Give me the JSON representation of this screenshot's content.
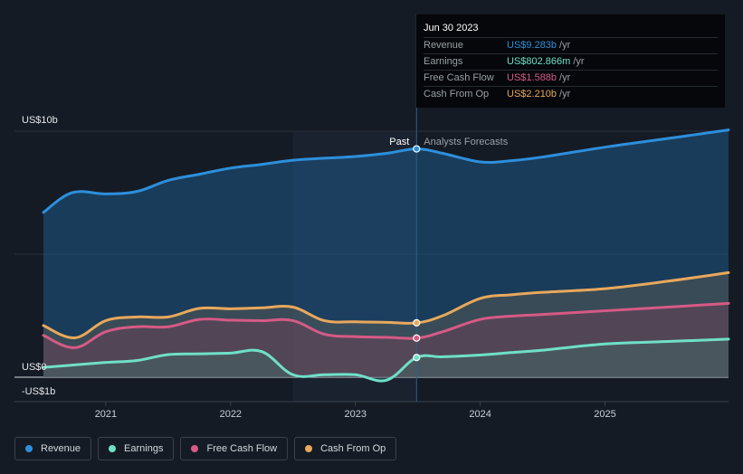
{
  "tooltip": {
    "date": "Jun 30 2023",
    "rows": [
      {
        "label": "Revenue",
        "value": "US$9.283b",
        "unit": "/yr",
        "color": "#2d8fdc"
      },
      {
        "label": "Earnings",
        "value": "US$802.866m",
        "unit": "/yr",
        "color": "#6fe0c8"
      },
      {
        "label": "Free Cash Flow",
        "value": "US$1.588b",
        "unit": "/yr",
        "color": "#d65a86"
      },
      {
        "label": "Cash From Op",
        "value": "US$2.210b",
        "unit": "/yr",
        "color": "#e8a85c"
      }
    ]
  },
  "legend": [
    {
      "label": "Revenue",
      "color": "#2d8fdc"
    },
    {
      "label": "Earnings",
      "color": "#6fe0c8"
    },
    {
      "label": "Free Cash Flow",
      "color": "#d65a86"
    },
    {
      "label": "Cash From Op",
      "color": "#e8a85c"
    }
  ],
  "chart_data": {
    "type": "line",
    "ylim": [
      -1,
      10
    ],
    "xlim": [
      2020.5,
      2025.99
    ],
    "y_tick_labels": [
      {
        "value": 10,
        "label": "US$10b"
      },
      {
        "value": 0,
        "label": "US$0"
      },
      {
        "value": -1,
        "label": "-US$1b"
      }
    ],
    "x_ticks": [
      {
        "value": 2021,
        "label": "2021"
      },
      {
        "value": 2022,
        "label": "2022"
      },
      {
        "value": 2023,
        "label": "2023"
      },
      {
        "value": 2024,
        "label": "2024"
      },
      {
        "value": 2025,
        "label": "2025"
      }
    ],
    "divider_x": 2023.49,
    "past_start_x": 2022.5,
    "past_label": "Past",
    "forecast_label": "Analysts Forecasts",
    "series": [
      {
        "name": "Revenue",
        "color": "#2d8fdc",
        "points": [
          [
            2020.5,
            6.7
          ],
          [
            2020.73,
            7.5
          ],
          [
            2021.0,
            7.45
          ],
          [
            2021.25,
            7.55
          ],
          [
            2021.5,
            8.0
          ],
          [
            2021.75,
            8.25
          ],
          [
            2022.0,
            8.5
          ],
          [
            2022.25,
            8.65
          ],
          [
            2022.5,
            8.82
          ],
          [
            2022.75,
            8.9
          ],
          [
            2023.0,
            8.97
          ],
          [
            2023.25,
            9.1
          ],
          [
            2023.49,
            9.28
          ],
          [
            2023.7,
            9.1
          ],
          [
            2024.0,
            8.75
          ],
          [
            2024.25,
            8.8
          ],
          [
            2024.5,
            8.95
          ],
          [
            2025.0,
            9.35
          ],
          [
            2025.5,
            9.7
          ],
          [
            2025.99,
            10.05
          ]
        ]
      },
      {
        "name": "Cash From Op",
        "color": "#e8a85c",
        "points": [
          [
            2020.5,
            2.1
          ],
          [
            2020.75,
            1.6
          ],
          [
            2021.0,
            2.3
          ],
          [
            2021.25,
            2.45
          ],
          [
            2021.5,
            2.45
          ],
          [
            2021.75,
            2.8
          ],
          [
            2022.0,
            2.78
          ],
          [
            2022.25,
            2.82
          ],
          [
            2022.5,
            2.85
          ],
          [
            2022.75,
            2.3
          ],
          [
            2023.0,
            2.25
          ],
          [
            2023.25,
            2.23
          ],
          [
            2023.49,
            2.21
          ],
          [
            2023.7,
            2.5
          ],
          [
            2024.0,
            3.2
          ],
          [
            2024.25,
            3.35
          ],
          [
            2024.5,
            3.45
          ],
          [
            2025.0,
            3.6
          ],
          [
            2025.5,
            3.9
          ],
          [
            2025.99,
            4.25
          ]
        ]
      },
      {
        "name": "Free Cash Flow",
        "color": "#d65a86",
        "points": [
          [
            2020.5,
            1.7
          ],
          [
            2020.75,
            1.2
          ],
          [
            2021.0,
            1.85
          ],
          [
            2021.25,
            2.05
          ],
          [
            2021.5,
            2.05
          ],
          [
            2021.75,
            2.35
          ],
          [
            2022.0,
            2.32
          ],
          [
            2022.25,
            2.3
          ],
          [
            2022.5,
            2.3
          ],
          [
            2022.75,
            1.75
          ],
          [
            2023.0,
            1.65
          ],
          [
            2023.25,
            1.62
          ],
          [
            2023.49,
            1.59
          ],
          [
            2023.7,
            1.85
          ],
          [
            2024.0,
            2.35
          ],
          [
            2024.25,
            2.48
          ],
          [
            2024.5,
            2.55
          ],
          [
            2025.0,
            2.7
          ],
          [
            2025.5,
            2.85
          ],
          [
            2025.99,
            3.0
          ]
        ]
      },
      {
        "name": "Earnings",
        "color": "#6fe0c8",
        "points": [
          [
            2020.5,
            0.4
          ],
          [
            2020.75,
            0.5
          ],
          [
            2021.0,
            0.6
          ],
          [
            2021.25,
            0.68
          ],
          [
            2021.5,
            0.92
          ],
          [
            2021.75,
            0.95
          ],
          [
            2022.0,
            0.98
          ],
          [
            2022.25,
            1.04
          ],
          [
            2022.5,
            0.1
          ],
          [
            2022.75,
            0.1
          ],
          [
            2023.0,
            0.1
          ],
          [
            2023.25,
            -0.12
          ],
          [
            2023.49,
            0.8
          ],
          [
            2023.7,
            0.83
          ],
          [
            2024.0,
            0.9
          ],
          [
            2024.25,
            1.0
          ],
          [
            2024.5,
            1.1
          ],
          [
            2025.0,
            1.35
          ],
          [
            2025.5,
            1.45
          ],
          [
            2025.99,
            1.55
          ]
        ]
      }
    ]
  }
}
